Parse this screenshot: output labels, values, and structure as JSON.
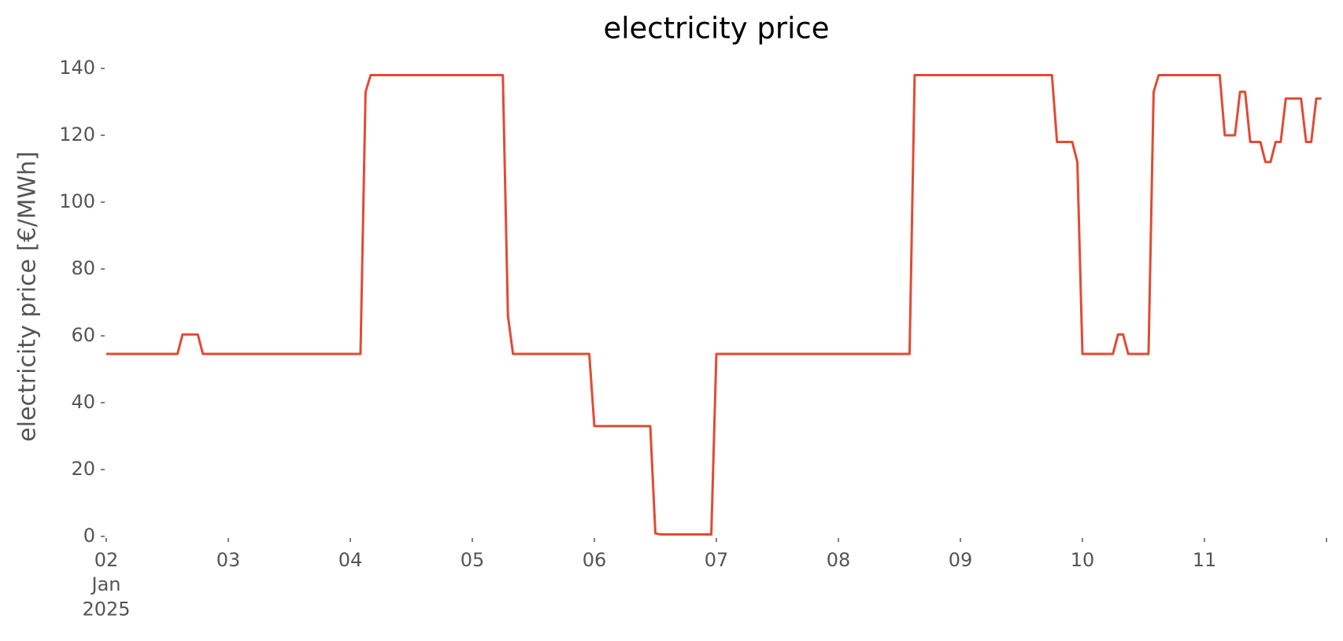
{
  "chart_data": {
    "type": "line",
    "title": "electricity price",
    "ylabel": "electricity price [€/MWh]",
    "x": [
      "2025-01-02T00:00",
      "2025-01-02T14:00",
      "2025-01-02T15:00",
      "2025-01-02T18:00",
      "2025-01-02T19:00",
      "2025-01-04T02:00",
      "2025-01-04T03:00",
      "2025-01-04T04:00",
      "2025-01-05T06:00",
      "2025-01-05T07:00",
      "2025-01-05T08:00",
      "2025-01-05T23:00",
      "2025-01-06T00:00",
      "2025-01-06T11:00",
      "2025-01-06T12:00",
      "2025-01-06T13:00",
      "2025-01-06T23:00",
      "2025-01-07T00:00",
      "2025-01-08T14:00",
      "2025-01-08T15:00",
      "2025-01-09T18:00",
      "2025-01-09T19:00",
      "2025-01-09T22:00",
      "2025-01-09T23:00",
      "2025-01-10T00:00",
      "2025-01-10T06:00",
      "2025-01-10T07:00",
      "2025-01-10T08:00",
      "2025-01-10T09:00",
      "2025-01-10T13:00",
      "2025-01-10T14:00",
      "2025-01-10T15:00",
      "2025-01-11T03:00",
      "2025-01-11T04:00",
      "2025-01-11T06:00",
      "2025-01-11T07:00",
      "2025-01-11T08:00",
      "2025-01-11T09:00",
      "2025-01-11T11:00",
      "2025-01-11T12:00",
      "2025-01-11T13:00",
      "2025-01-11T14:00",
      "2025-01-11T15:00",
      "2025-01-11T16:00",
      "2025-01-11T19:00",
      "2025-01-11T20:00",
      "2025-01-11T21:00",
      "2025-01-11T22:00",
      "2025-01-11T23:00"
    ],
    "series": [
      {
        "name": "electricity price",
        "color": "#e24a33",
        "values": [
          54.6,
          54.6,
          60.4,
          60.4,
          54.6,
          54.6,
          133,
          138,
          138,
          66,
          54.6,
          54.6,
          33,
          33,
          0.9,
          0.6,
          0.6,
          54.6,
          54.6,
          138,
          138,
          118,
          118,
          112,
          54.6,
          54.6,
          60.4,
          60.4,
          54.6,
          54.6,
          133,
          138,
          138,
          120,
          120,
          133,
          133,
          118,
          118,
          112,
          112,
          118,
          118,
          131,
          131,
          118,
          118,
          131,
          131
        ]
      }
    ],
    "xlim": [
      "2025-01-02",
      "2025-01-12"
    ],
    "xticks": [
      {
        "value": "2025-01-02",
        "label": "02\nJan\n2025"
      },
      {
        "value": "2025-01-03",
        "label": "03"
      },
      {
        "value": "2025-01-04",
        "label": "04"
      },
      {
        "value": "2025-01-05",
        "label": "05"
      },
      {
        "value": "2025-01-06",
        "label": "06"
      },
      {
        "value": "2025-01-07",
        "label": "07"
      },
      {
        "value": "2025-01-08",
        "label": "08"
      },
      {
        "value": "2025-01-09",
        "label": "09"
      },
      {
        "value": "2025-01-10",
        "label": "10"
      },
      {
        "value": "2025-01-11",
        "label": "11"
      }
    ],
    "ylim": [
      0,
      140
    ],
    "yticks": [
      0,
      20,
      40,
      60,
      80,
      100,
      120,
      140
    ],
    "grid": false
  }
}
